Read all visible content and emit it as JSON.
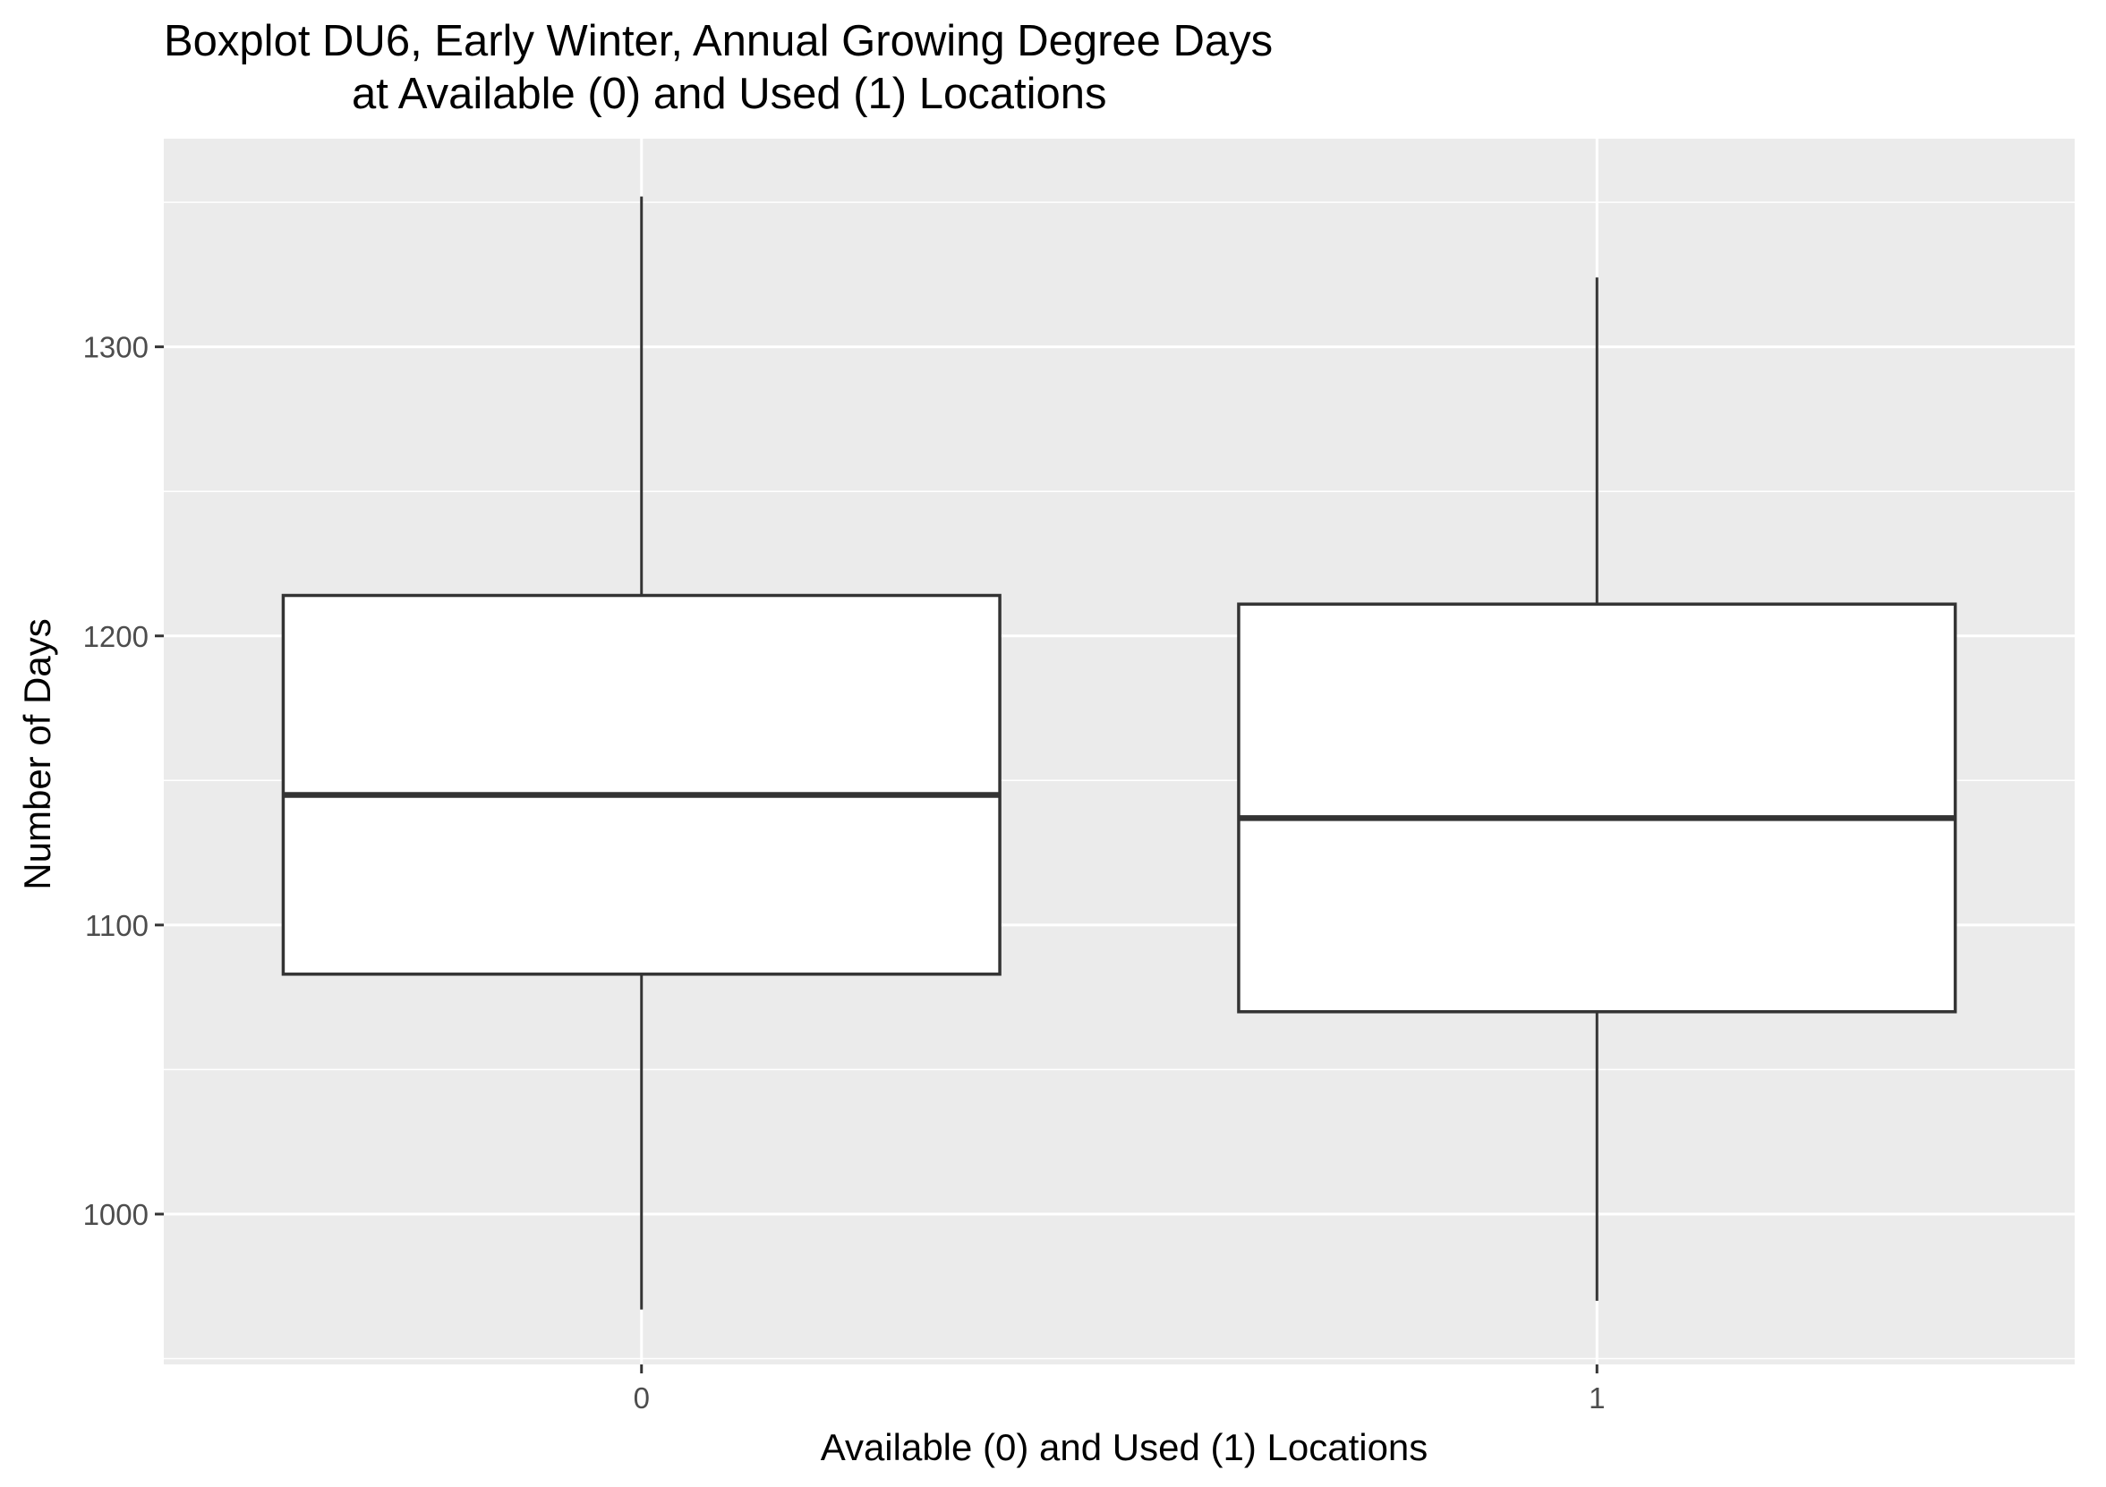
{
  "chart_data": {
    "type": "boxplot",
    "title": "Boxplot DU6, Early Winter, Annual Growing Degree Days",
    "subtitle": "at Available (0) and Used (1) Locations",
    "xlabel": "Available (0) and Used (1) Locations",
    "ylabel": "Number of Days",
    "categories": [
      "0",
      "1"
    ],
    "boxes": [
      {
        "category": "0",
        "whisker_low": 967,
        "q1": 1083,
        "median": 1145,
        "q3": 1214,
        "whisker_high": 1352
      },
      {
        "category": "1",
        "whisker_low": 970,
        "q1": 1070,
        "median": 1137,
        "q3": 1211,
        "whisker_high": 1324
      }
    ],
    "ylim": [
      948,
      1372
    ],
    "yticks": [
      1000,
      1100,
      1200,
      1300
    ],
    "ytick_labels": [
      "1000",
      "1100",
      "1200",
      "1300"
    ],
    "grid": true,
    "colors": {
      "panel_background": "#ebebeb",
      "grid_major": "#ffffff",
      "box_fill": "#ffffff",
      "box_line": "#333333",
      "tick_text": "#4d4d4d"
    }
  }
}
